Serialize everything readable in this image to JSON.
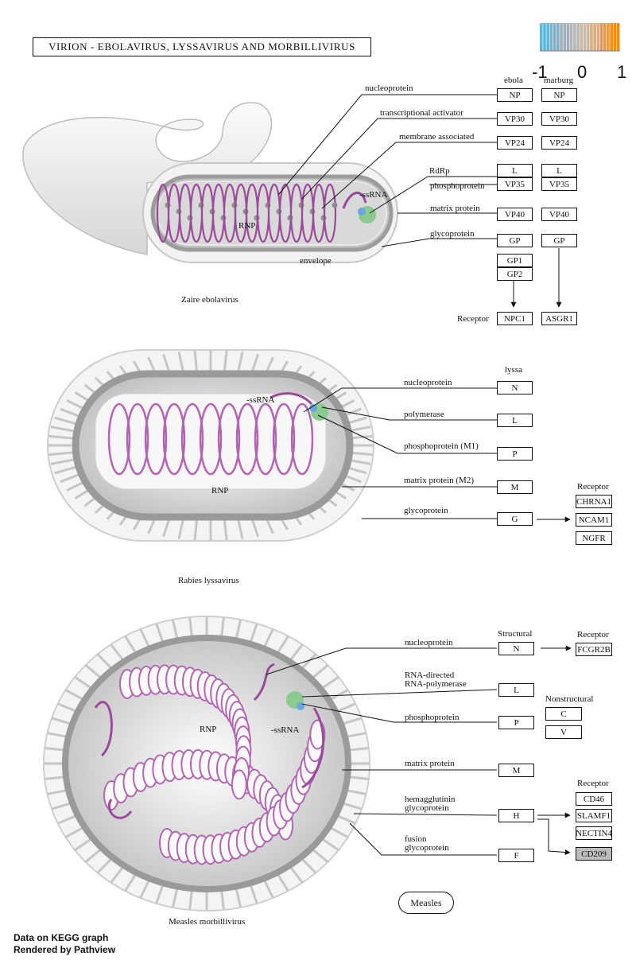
{
  "title": "VIRION - EBOLAVIRUS, LYSSAVIRUS AND MORBILLIVIRUS",
  "scale": {
    "min": "-1",
    "mid": "0",
    "max": "1",
    "colors": [
      "#5bb8d8",
      "#7fb0c7",
      "#9fb0bb",
      "#b6b6b6",
      "#c9b9a5",
      "#d8ae80",
      "#e59b40",
      "#f08c1a"
    ]
  },
  "footer": {
    "line1": "Data on KEGG graph",
    "line2": "Rendered by Pathview"
  },
  "ebola": {
    "caption": "Zaire ebolavirus",
    "col_ebola": "ebola",
    "col_marburg": "marburg",
    "labels": {
      "nucleoprotein": "nucleoprotein",
      "transcriptional": "transcriptional activator",
      "membrane": "membrane associated",
      "rdrp": "RdRp",
      "phospho": "phosphoprotein",
      "matrix": "matrix protein",
      "glyco": "glycoprotein",
      "ssrna": "-ssRNA",
      "rnp": "RNP",
      "envelope": "envelope",
      "receptor": "Receptor"
    },
    "boxes": {
      "np_e": "NP",
      "np_m": "NP",
      "vp30_e": "VP30",
      "vp30_m": "VP30",
      "vp24_e": "VP24",
      "vp24_m": "VP24",
      "l_e": "L",
      "l_m": "L",
      "vp35_e": "VP35",
      "vp35_m": "VP35",
      "vp40_e": "VP40",
      "vp40_m": "VP40",
      "gp_e": "GP",
      "gp_m": "GP",
      "gp1": "GP1",
      "gp2": "GP2",
      "npc1": "NPC1",
      "asgr1": "ASGR1"
    }
  },
  "rabies": {
    "caption": "Rabies lyssavirus",
    "col": "lyssa",
    "labels": {
      "nucleoprotein": "nucleoprotein",
      "polymerase": "polymerase",
      "phospho": "phosphoprotein (M1)",
      "matrix": "matrix protein (M2)",
      "glyco": "glycoprotein",
      "ssrna": "-ssRNA",
      "rnp": "RNP",
      "receptor": "Receptor"
    },
    "boxes": {
      "n": "N",
      "l": "L",
      "p": "P",
      "m": "M",
      "g": "G",
      "chrna1": "CHRNA1",
      "ncam1": "NCAM1",
      "ngfr": "NGFR"
    }
  },
  "measles": {
    "caption": "Measles morbillivirus",
    "structural": "Structural",
    "nonstructural": "Nonstructural",
    "labels": {
      "nucleoprotein": "nucleoprotein",
      "rna_directed1": "RNA-directed",
      "rna_directed2": "RNA-polymerase",
      "phospho": "phosphoprotein",
      "matrix": "matrix protein",
      "hemag1": "hemagglutinin",
      "hemag2": "glycoprotein",
      "fusion1": "fusion",
      "fusion2": "glycoprotein",
      "rnp": "RNP",
      "ssrna": "-ssRNA",
      "receptor1": "Receptor",
      "receptor2": "Receptor"
    },
    "boxes": {
      "n": "N",
      "l": "L",
      "p": "P",
      "m": "M",
      "h": "H",
      "f": "F",
      "c": "C",
      "v": "V",
      "fcgr2b": "FCGR2B",
      "cd46": "CD46",
      "slamf1": "SLAMF1",
      "nectin4": "NECTIN4",
      "cd209": "CD209"
    },
    "map_link": "Measles"
  }
}
